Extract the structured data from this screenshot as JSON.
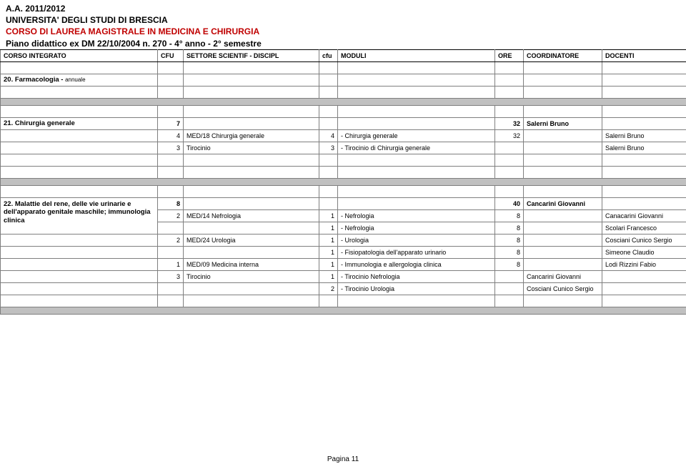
{
  "header": {
    "line1": "A.A. 2011/2012",
    "line2": "UNIVERSITA' DEGLI STUDI DI BRESCIA",
    "line3": "CORSO DI LAUREA MAGISTRALE IN MEDICINA E CHIRURGIA",
    "line4": "Piano didattico ex DM 22/10/2004 n. 270 - 4° anno - 2° semestre"
  },
  "columns": {
    "c1": "CORSO INTEGRATO",
    "c2": "CFU",
    "c3": "SETTORE SCIENTIF - DISCIPL",
    "c4": "cfu",
    "c5": "MODULI",
    "c6": "ORE",
    "c7": "COORDINATORE",
    "c8": "DOCENTI"
  },
  "sections": {
    "farmacologia": {
      "title": "20. Farmacologia - ",
      "suffix": "annuale"
    },
    "chirurgia": {
      "title": "21. Chirurgia generale",
      "cfu": "7",
      "ore": "32",
      "coord": "Salerni Bruno",
      "rows": [
        {
          "cfu": "4",
          "settore": "MED/18 Chirurgia generale",
          "mcfu": "4",
          "modulo": "- Chirurgia generale",
          "ore": "32",
          "doc": "Salerni Bruno"
        },
        {
          "cfu": "3",
          "settore": "Tirocinio",
          "mcfu": "3",
          "modulo": "- Tirocinio di Chirurgia generale",
          "ore": "",
          "doc": "Salerni Bruno"
        }
      ]
    },
    "malattie": {
      "title": "22. Malattie del rene, delle vie urinarie e dell'apparato genitale maschile; immunologia clinica",
      "cfu": "8",
      "ore": "40",
      "coord": "Cancarini Giovanni",
      "rows": [
        {
          "cfu": "2",
          "settore": "MED/14 Nefrologia",
          "mcfu": "1",
          "modulo": "- Nefrologia",
          "ore": "8",
          "doc": "Canacarini Giovanni"
        },
        {
          "cfu": "",
          "settore": "",
          "mcfu": "1",
          "modulo": "- Nefrologia",
          "ore": "8",
          "doc": "Scolari Francesco"
        },
        {
          "cfu": "2",
          "settore": "MED/24 Urologia",
          "mcfu": "1",
          "modulo": "- Urologia",
          "ore": "8",
          "doc": "Cosciani Cunico Sergio"
        },
        {
          "cfu": "",
          "settore": "",
          "mcfu": "1",
          "modulo": "- Fisiopatologia dell'apparato urinario",
          "ore": "8",
          "doc": "Simeone Claudio"
        },
        {
          "cfu": "1",
          "settore": "MED/09 Medicina interna",
          "mcfu": "1",
          "modulo": "- Immunologia e allergologia clinica",
          "ore": "8",
          "doc": "Lodi Rizzini Fabio"
        },
        {
          "cfu": "3",
          "settore": "Tirocinio",
          "mcfu": "1",
          "modulo": "- Tirocinio Nefrologia",
          "ore": "",
          "coord": "Cancarini Giovanni",
          "doc": ""
        },
        {
          "cfu": "",
          "settore": "",
          "mcfu": "2",
          "modulo": "- Tirocinio Urologia",
          "ore": "",
          "coord": "Cosciani Cunico Sergio",
          "doc": ""
        }
      ]
    }
  },
  "footer": "Pagina 11"
}
